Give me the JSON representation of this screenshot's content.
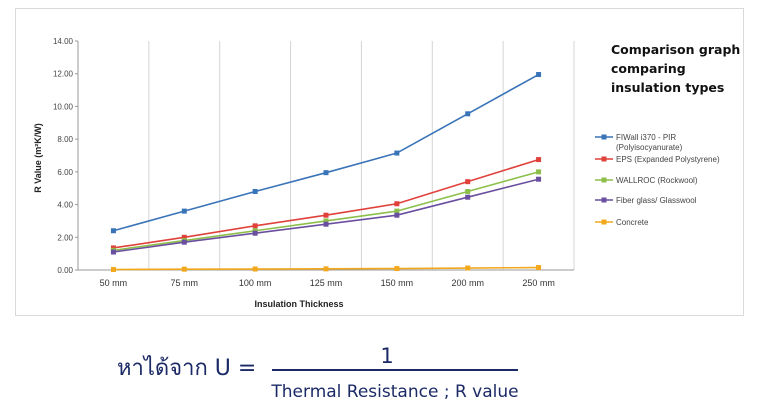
{
  "chart_data": {
    "type": "line",
    "title": "Comparison graph comparing insulation types",
    "xlabel": "Insulation Thickness",
    "ylabel": "R Value (m²K/W)",
    "categories": [
      "50 mm",
      "75 mm",
      "100 mm",
      "125 mm",
      "150 mm",
      "200 mm",
      "250 mm"
    ],
    "ylim": [
      0,
      14
    ],
    "yticks": [
      "0.00",
      "2.00",
      "4.00",
      "6.00",
      "8.00",
      "10.00",
      "12.00",
      "14.00"
    ],
    "grid": "vertical",
    "legend_position": "right",
    "series": [
      {
        "name": "FIWall i370 - PIR (Polyisocyanurate)",
        "legend_lines": [
          "FIWall i370 - PIR",
          "(Polyisocyanurate)"
        ],
        "color": "#3a74b8",
        "values": [
          2.4,
          3.6,
          4.8,
          5.95,
          7.15,
          9.55,
          11.95
        ]
      },
      {
        "name": "EPS (Expanded Polystyrene)",
        "legend_lines": [
          "EPS (Expanded Polystyrene)"
        ],
        "color": "#e0413a",
        "values": [
          1.35,
          2.0,
          2.7,
          3.35,
          4.05,
          5.4,
          6.75
        ]
      },
      {
        "name": "WALLROC (Rockwool)",
        "legend_lines": [
          "WALLROC (Rockwool)"
        ],
        "color": "#8cbf4a",
        "values": [
          1.2,
          1.8,
          2.4,
          3.0,
          3.6,
          4.8,
          6.0
        ]
      },
      {
        "name": "Fiber glass/ Glasswool",
        "legend_lines": [
          "Fiber glass/ Glasswool"
        ],
        "color": "#6a4fa0",
        "values": [
          1.1,
          1.7,
          2.25,
          2.8,
          3.35,
          4.45,
          5.55
        ]
      },
      {
        "name": "Concrete",
        "legend_lines": [
          "Concrete"
        ],
        "color": "#f2a81d",
        "values": [
          0.03,
          0.05,
          0.06,
          0.07,
          0.09,
          0.12,
          0.15
        ]
      }
    ]
  },
  "title_lines": [
    "Comparison graph",
    "comparing",
    "insulation types"
  ],
  "formula": {
    "prefix": "หาได้จาก U =",
    "numerator": "1",
    "denominator": "Thermal Resistance ; R value"
  }
}
